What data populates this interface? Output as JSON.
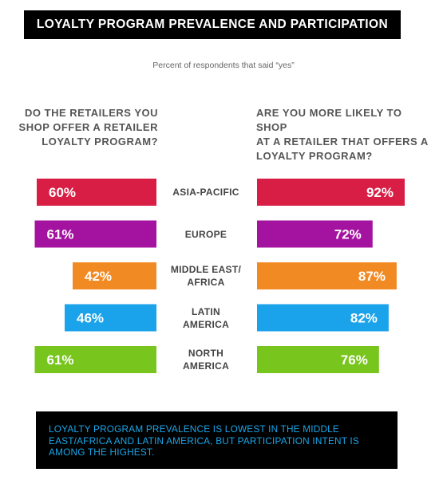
{
  "title": "LOYALTY PROGRAM PREVALENCE AND PARTICIPATION",
  "subtitle": "Percent of respondents that said “yes”",
  "left_question": [
    "DO THE RETAILERS YOU",
    "SHOP OFFER A RETAILER",
    "LOYALTY PROGRAM?"
  ],
  "right_question": [
    "ARE YOU MORE LIKELY TO SHOP",
    "AT A RETAILER THAT OFFERS A",
    "LOYALTY PROGRAM?"
  ],
  "callout": "LOYALTY PROGRAM PREVALENCE IS LOWEST IN THE MIDDLE EAST/AFRICA AND LATIN AMERICA, BUT PARTICIPATION INTENT IS AMONG THE HIGHEST.",
  "chart_data": {
    "type": "bar",
    "orientation": "horizontal-butterfly",
    "categories": [
      "ASIA-PACIFIC",
      "EUROPE",
      "MIDDLE EAST/ AFRICA",
      "LATIN AMERICA",
      "NORTH AMERICA"
    ],
    "category_lines": [
      [
        "ASIA-PACIFIC"
      ],
      [
        "EUROPE"
      ],
      [
        "MIDDLE EAST/",
        "AFRICA"
      ],
      [
        "LATIN",
        "AMERICA"
      ],
      [
        "NORTH",
        "AMERICA"
      ]
    ],
    "series": [
      {
        "values": [
          60,
          61,
          42,
          46,
          61
        ],
        "labels": [
          "60%",
          "61%",
          "42%",
          "46%",
          "61%"
        ]
      },
      {
        "values": [
          92,
          72,
          87,
          82,
          76
        ],
        "labels": [
          "92%",
          "72%",
          "87%",
          "82%",
          "76%"
        ]
      }
    ],
    "colors": [
      "#d81e45",
      "#a4139f",
      "#f28a24",
      "#1aa3ea",
      "#78c51e"
    ],
    "unit": "%",
    "grid": false
  }
}
